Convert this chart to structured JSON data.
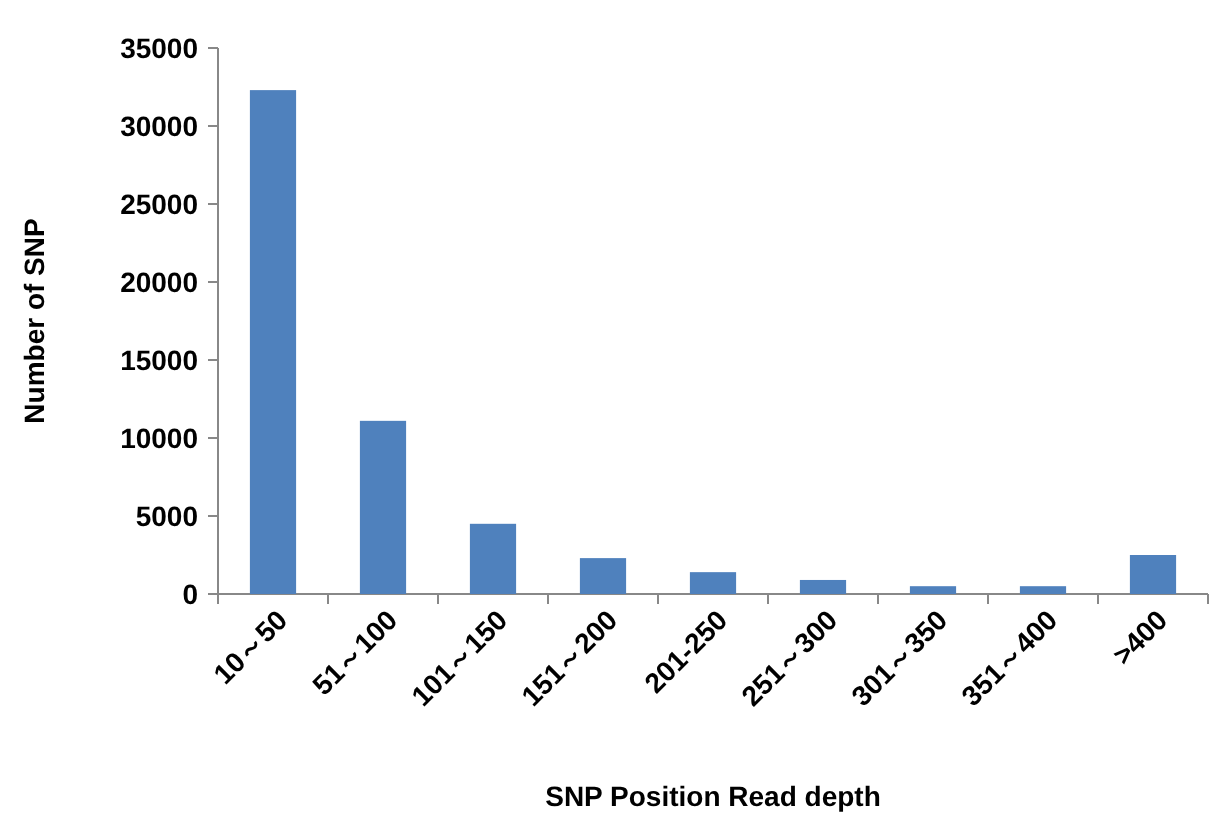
{
  "chart_data": {
    "type": "bar",
    "xlabel": "SNP Position  Read depth",
    "ylabel": "Number of SNP",
    "categories": [
      "10～50",
      "51～100",
      "101～150",
      "151～200",
      "201-250",
      "251～300",
      "301～350",
      "351～400",
      ">400"
    ],
    "values": [
      32300,
      11100,
      4500,
      2300,
      1400,
      900,
      500,
      500,
      2500
    ],
    "color": "#4f81bd",
    "ylim": [
      0,
      35000
    ],
    "yticks": [
      0,
      5000,
      10000,
      15000,
      20000,
      25000,
      30000,
      35000
    ]
  }
}
